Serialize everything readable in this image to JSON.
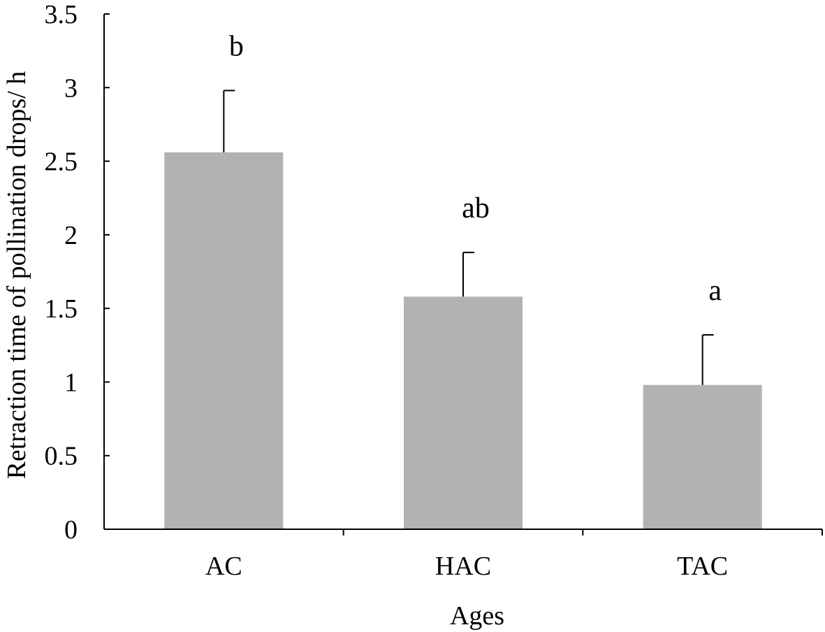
{
  "chart_data": {
    "type": "bar",
    "title": "",
    "xlabel": "Ages",
    "ylabel": "Retraction time of pollination drops/ h",
    "categories": [
      "AC",
      "HAC",
      "TAC"
    ],
    "values": [
      2.56,
      1.58,
      0.98
    ],
    "error_upper": [
      0.42,
      0.3,
      0.34
    ],
    "significance_labels": [
      "b",
      "ab",
      "a"
    ],
    "ylim": [
      0,
      3.5
    ],
    "yticks": [
      0,
      0.5,
      1,
      1.5,
      2,
      2.5,
      3,
      3.5
    ],
    "ytick_labels": [
      "0",
      "0.5",
      "1",
      "1.5",
      "2",
      "2.5",
      "3",
      "3.5"
    ],
    "grid": false,
    "legend": "none",
    "bar_color": "#b2b2b2",
    "axis_color": "#000000"
  }
}
